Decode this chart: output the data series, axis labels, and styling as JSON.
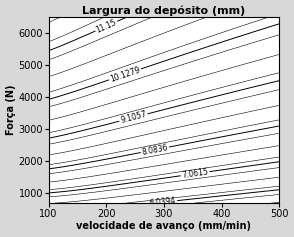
{
  "title": "Largura do depósito (mm)",
  "xlabel": "velocidade de avanço (mm/min)",
  "ylabel": "Força (N)",
  "xlim": [
    100,
    500
  ],
  "ylim": [
    700,
    6500
  ],
  "xticks": [
    100,
    200,
    300,
    400,
    500
  ],
  "yticks": [
    1000,
    2000,
    3000,
    4000,
    5000,
    6000
  ],
  "contour_levels": [
    6.0394,
    7.0615,
    8.0836,
    9.1057,
    10.1279,
    11.15
  ],
  "label_texts": [
    "6.0394",
    "7.0615",
    "8.0836",
    "9.1057",
    "10.1279",
    "11.15"
  ],
  "line_color": "black",
  "background_color": "#ffffff",
  "title_fontsize": 8,
  "axis_label_fontsize": 7,
  "tick_fontsize": 7
}
